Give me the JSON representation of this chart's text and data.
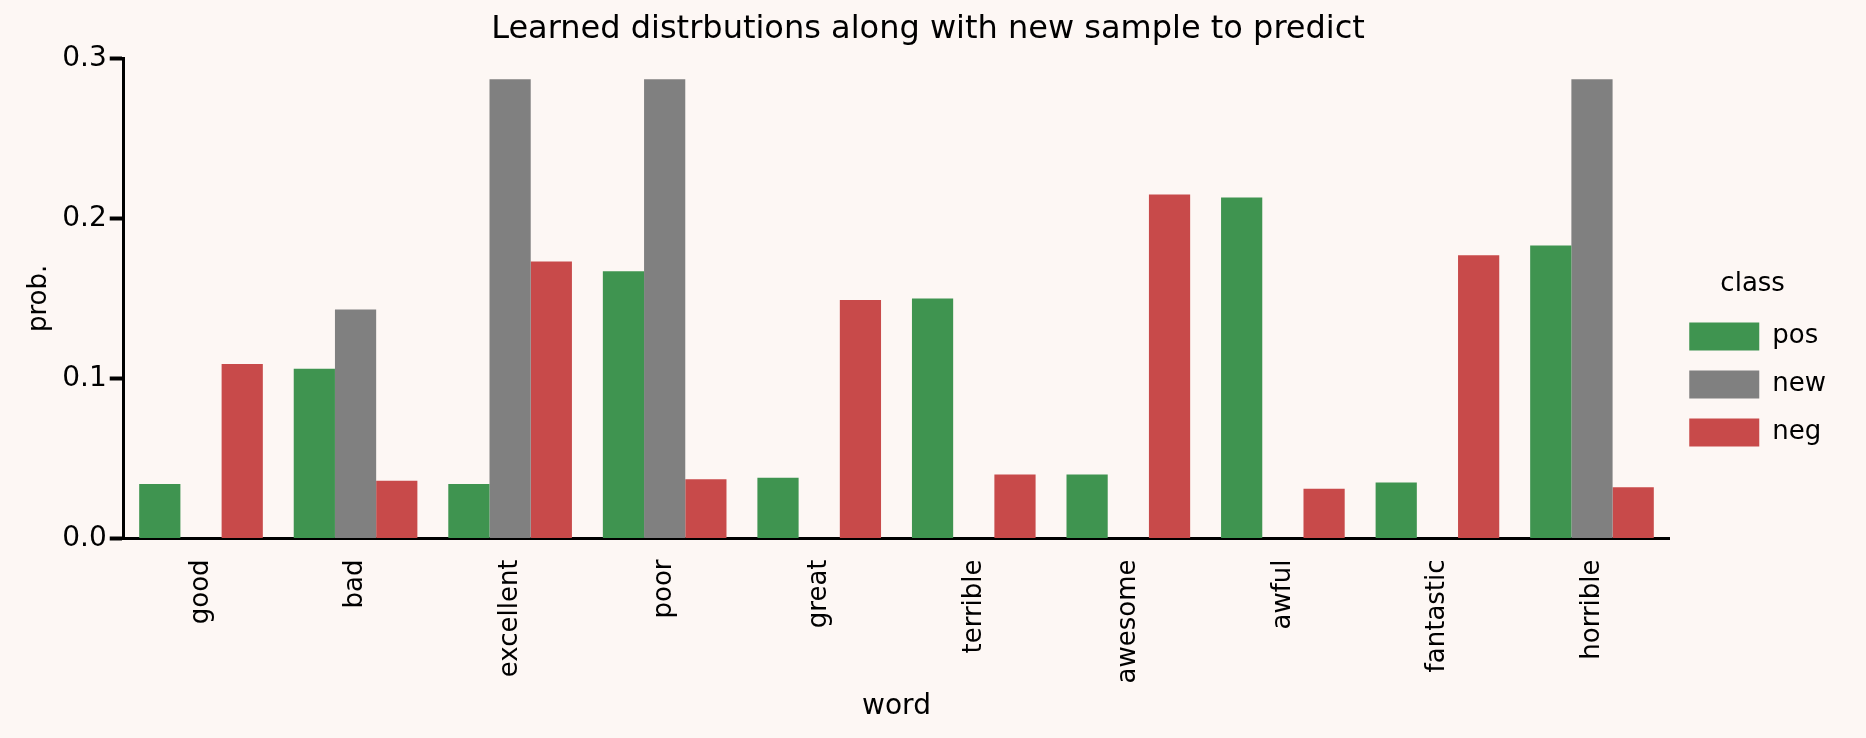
{
  "chart_data": {
    "type": "bar",
    "title": "Learned distrbutions along with new sample to predict",
    "xlabel": "word",
    "ylabel": "prob.",
    "legend_title": "class",
    "categories": [
      "good",
      "bad",
      "excellent",
      "poor",
      "great",
      "terrible",
      "awesome",
      "awful",
      "fantastic",
      "horrible"
    ],
    "series": [
      {
        "name": "pos",
        "color": "#3f9450",
        "values": [
          0.034,
          0.106,
          0.034,
          0.167,
          0.038,
          0.15,
          0.04,
          0.213,
          0.035,
          0.183
        ]
      },
      {
        "name": "new",
        "color": "#808080",
        "values": [
          0,
          0.143,
          0.287,
          0.287,
          0,
          0,
          0,
          0,
          0,
          0.287
        ]
      },
      {
        "name": "neg",
        "color": "#c84a4a",
        "values": [
          0.109,
          0.036,
          0.173,
          0.037,
          0.149,
          0.04,
          0.215,
          0.031,
          0.177,
          0.032
        ]
      }
    ],
    "ylim": [
      0,
      0.3
    ],
    "yticks": [
      {
        "value": 0,
        "label": "0.0"
      },
      0.1,
      0.2,
      0.3
    ],
    "grid": false,
    "legend": "right"
  }
}
